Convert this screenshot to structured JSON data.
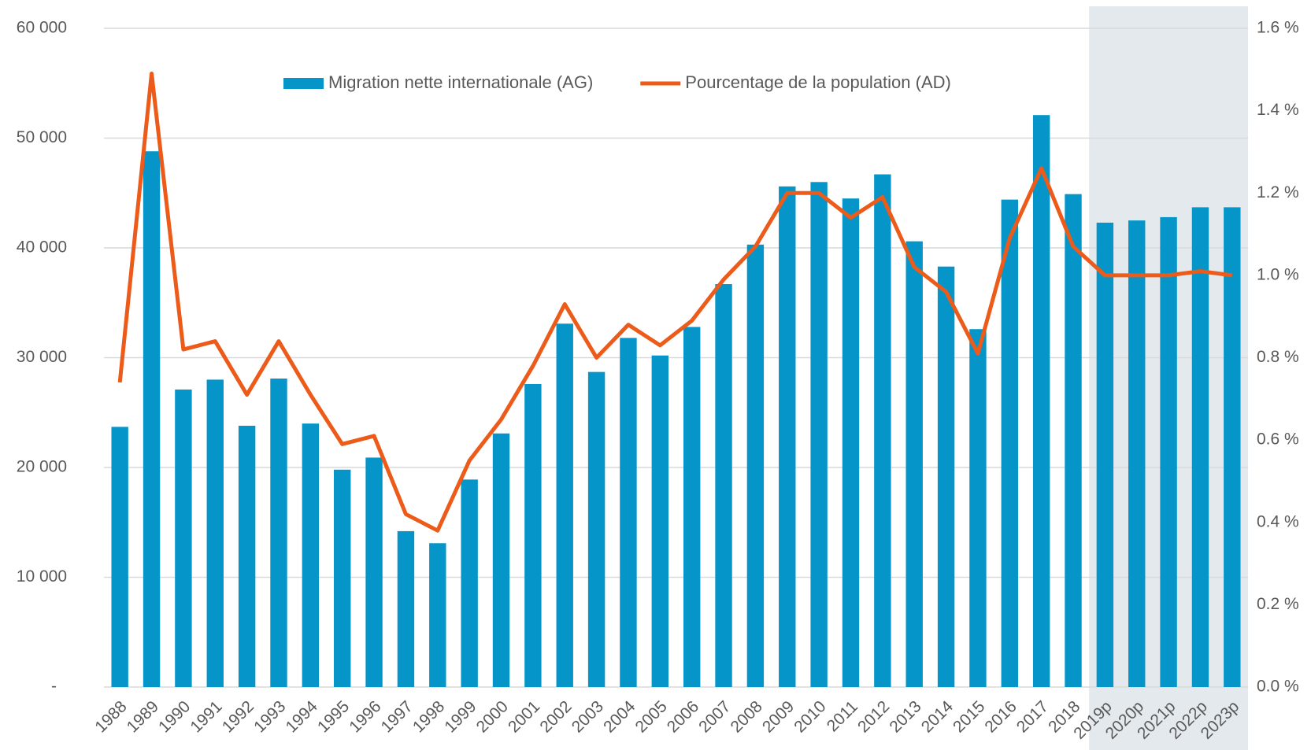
{
  "chart_data": {
    "type": "bar-line",
    "categories": [
      "1988",
      "1989",
      "1990",
      "1991",
      "1992",
      "1993",
      "1994",
      "1995",
      "1996",
      "1997",
      "1998",
      "1999",
      "2000",
      "2001",
      "2002",
      "2003",
      "2004",
      "2005",
      "2006",
      "2007",
      "2008",
      "2009",
      "2010",
      "2011",
      "2012",
      "2013",
      "2014",
      "2015",
      "2016",
      "2017",
      "2018",
      "2019p",
      "2020p",
      "2021p",
      "2022p",
      "2023p"
    ],
    "series": [
      {
        "name": "Migration nette internationale (AG)",
        "color": "#0595c8",
        "type": "bar",
        "values": [
          23700,
          48800,
          27100,
          28000,
          23800,
          28100,
          24000,
          19800,
          20900,
          14200,
          13100,
          18900,
          23100,
          27600,
          33100,
          28700,
          31800,
          30200,
          32800,
          36700,
          40300,
          45600,
          46000,
          44500,
          46700,
          40600,
          38300,
          32600,
          44400,
          52100,
          44900,
          42300,
          42500,
          42800,
          43700,
          43700
        ]
      },
      {
        "name": "Pourcentage de la population (AD)",
        "color": "#ec5b19",
        "type": "line",
        "axis": "y2",
        "values": [
          0.74,
          1.49,
          0.82,
          0.84,
          0.71,
          0.84,
          0.71,
          0.59,
          0.61,
          0.42,
          0.38,
          0.55,
          0.65,
          0.78,
          0.93,
          0.8,
          0.88,
          0.83,
          0.89,
          0.99,
          1.07,
          1.2,
          1.2,
          1.14,
          1.19,
          1.02,
          0.96,
          0.81,
          1.09,
          1.26,
          1.07,
          1.0,
          1.0,
          1.0,
          1.01,
          1.0
        ]
      }
    ],
    "ylim": [
      0,
      60000
    ],
    "yticks": [
      {
        "value": 0,
        "label": "-"
      },
      {
        "value": 10000,
        "label": "10 000"
      },
      {
        "value": 20000,
        "label": "20 000"
      },
      {
        "value": 30000,
        "label": "30 000"
      },
      {
        "value": 40000,
        "label": "40 000"
      },
      {
        "value": 50000,
        "label": "50 000"
      },
      {
        "value": 60000,
        "label": "60 000"
      }
    ],
    "y2lim": [
      0,
      1.6
    ],
    "y2ticks": [
      {
        "value": 0,
        "label": "0.0 %"
      },
      {
        "value": 0.2,
        "label": "0.2 %"
      },
      {
        "value": 0.4,
        "label": "0.4 %"
      },
      {
        "value": 0.6,
        "label": "0.6 %"
      },
      {
        "value": 0.8,
        "label": "0.8 %"
      },
      {
        "value": 1.0,
        "label": "1.0 %"
      },
      {
        "value": 1.2,
        "label": "1.2 %"
      },
      {
        "value": 1.4,
        "label": "1.4 %"
      },
      {
        "value": 1.6,
        "label": "1.6 %"
      }
    ],
    "grid": true,
    "legend": "top"
  }
}
